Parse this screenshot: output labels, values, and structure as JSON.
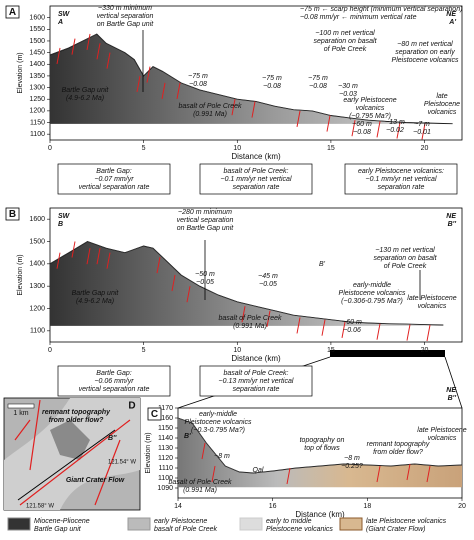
{
  "chart_data": [
    {
      "type": "line",
      "panel": "A",
      "left_label": [
        "SW",
        "A"
      ],
      "right_label": [
        "NE",
        "A'"
      ],
      "x_label": "Distance (km)",
      "y_label": "Elevation (m)",
      "color": "#6e6e6e",
      "x": [
        0,
        1,
        2,
        2.5,
        3,
        4,
        4.5,
        5,
        5.5,
        6,
        7,
        8,
        9,
        10,
        11,
        12,
        13,
        14,
        15,
        16,
        17,
        18,
        19,
        20,
        21,
        21.5
      ],
      "values": [
        1440,
        1470,
        1510,
        1530,
        1490,
        1450,
        1420,
        1350,
        1390,
        1370,
        1320,
        1290,
        1270,
        1250,
        1240,
        1220,
        1205,
        1200,
        1180,
        1170,
        1160,
        1155,
        1150,
        1148,
        1146,
        1145
      ],
      "xlim": [
        0,
        22
      ],
      "ylim": [
        1075,
        1650
      ],
      "xticks": [
        0,
        5,
        10,
        15,
        20
      ],
      "yticks": [
        1100,
        1150,
        1200,
        1250,
        1300,
        1350,
        1400,
        1450,
        1500,
        1550,
        1600
      ],
      "annotations": [
        [
          "~330 m minimum",
          "vertical separation",
          "on Bartle Gap unit"
        ],
        [
          "~75 m ← scarp height (minimum vertical separation)",
          "~0.08 mm/yr ← minimum vertical rate"
        ],
        [
          "~100 m net vertical",
          "separation on basalt",
          "of Pole Creek"
        ],
        [
          "~80 m net vertical",
          "separation on early",
          "Pleistocene volcanics"
        ],
        [
          "Bartle Gap unit",
          "(4.9-6.2 Ma)"
        ],
        [
          "basalt of Pole Creek",
          "(0.991 Ma)"
        ],
        [
          "early Pleistocene",
          "volcanics",
          "(~0.795 Ma?)"
        ],
        [
          "late",
          "Pleistocene",
          "volcanics"
        ],
        [
          "~75 m",
          "~0.08"
        ],
        [
          "~75 m",
          "~0.08"
        ],
        [
          "~75 m",
          "~0.08"
        ],
        [
          "~30 m",
          "~0.03"
        ],
        [
          "~60 m",
          "~0.08"
        ],
        [
          "~13 m",
          "~0.02"
        ],
        [
          "~7 m",
          "~0.01"
        ]
      ],
      "rate_boxes": [
        [
          "Bartle Gap:",
          "~0.07 mm/yr",
          "vertical separation rate"
        ],
        [
          "basalt of Pole Creek:",
          "~0.1 mm/yr net vertical",
          "separation rate"
        ],
        [
          "early Pleistocene volcanics:",
          "~0.1 mm/yr net vertical",
          "separation rate"
        ]
      ]
    },
    {
      "type": "line",
      "panel": "B",
      "left_label": [
        "SW",
        "B"
      ],
      "right_label": [
        "NE",
        "B''"
      ],
      "x_label": "Distance (km)",
      "y_label": "Elevation (m)",
      "color": "#6e6e6e",
      "x": [
        0,
        1,
        2,
        3,
        4,
        5,
        5.5,
        6,
        7,
        8,
        9,
        10,
        11,
        12,
        13,
        14,
        15,
        16,
        17,
        18,
        19,
        20,
        21
      ],
      "values": [
        1400,
        1450,
        1500,
        1470,
        1450,
        1480,
        1470,
        1430,
        1350,
        1300,
        1260,
        1230,
        1210,
        1190,
        1170,
        1160,
        1150,
        1140,
        1135,
        1132,
        1130,
        1128,
        1126
      ],
      "xlim": [
        0,
        22
      ],
      "ylim": [
        1050,
        1650
      ],
      "xticks": [
        0,
        5,
        10,
        15,
        20
      ],
      "yticks": [
        1100,
        1200,
        1300,
        1400,
        1500,
        1600
      ],
      "annotations": [
        [
          "~280 m minimum",
          "vertical separation",
          "on Bartle Gap unit"
        ],
        [
          "~130 m net vertical",
          "separation on basalt",
          "of Pole Creek"
        ],
        [
          "Bartle Gap unit",
          "(4.9-6.2 Ma)"
        ],
        [
          "basalt of Pole Creek",
          "(0.991 Ma)"
        ],
        [
          "early-middle",
          "Pleistocene volcanics",
          "(~0.306-0.795 Ma?)"
        ],
        [
          "late Pleistocene",
          "volcanics"
        ],
        [
          "~50 m",
          "~0.05"
        ],
        [
          "~45 m",
          "~0.05"
        ],
        [
          "~60 m",
          "~0.06"
        ],
        [
          "B'"
        ]
      ],
      "rate_boxes": [
        [
          "Bartle Gap:",
          "~0.06 mm/yr",
          "vertical separation rate"
        ],
        [
          "basalt of Pole Creek:",
          "~0.13 mm/yr net vertical",
          "separation rate"
        ]
      ]
    },
    {
      "type": "line",
      "panel": "C",
      "left_label": [
        "B'"
      ],
      "right_label": [
        "NE",
        "B''"
      ],
      "x_label": "Distance (km)",
      "y_label": "Elevation (m)",
      "color": "#8a8a8a",
      "x": [
        14,
        14.3,
        14.6,
        15,
        15.3,
        15.6,
        16,
        16.5,
        17,
        17.5,
        18,
        18.5,
        19,
        19.5,
        20
      ],
      "values": [
        1160,
        1155,
        1135,
        1112,
        1106,
        1105,
        1107,
        1110,
        1112,
        1114,
        1113,
        1112,
        1114,
        1112,
        1113
      ],
      "xlim": [
        14,
        20
      ],
      "ylim": [
        1080,
        1170
      ],
      "xticks": [
        14,
        16,
        18,
        20
      ],
      "yticks": [
        1090,
        1100,
        1110,
        1120,
        1130,
        1140,
        1150,
        1160,
        1170
      ],
      "annotations": [
        [
          "early-middle",
          "Pleistocene volcanics",
          "(~0.3-0.795 Ma?)"
        ],
        [
          "~8 m"
        ],
        [
          "basalt of Pole Creek",
          "(0.991 Ma)"
        ],
        [
          "Qal"
        ],
        [
          "topography on",
          "top of flows"
        ],
        [
          "~8 m",
          "~0.25?"
        ],
        [
          "remnant topography",
          "from older flow?"
        ],
        [
          "late Pleistocene",
          "volcanics"
        ]
      ],
      "rate_boxes": []
    }
  ],
  "map": {
    "panel": "D",
    "scale": "1 km",
    "labels": [
      "remnant topography",
      "from older flow?"
    ],
    "point": "B''",
    "flow": "Giant Crater Flow",
    "lon1": "121.54° W",
    "lon2": "121.58° W"
  },
  "legend": [
    [
      "Miocene-Pliocene",
      "Bartle Gap unit"
    ],
    [
      "early Pleistocene",
      "basalt of Pole Creek"
    ],
    [
      "early to middle",
      "Pleistocene volcanics"
    ],
    [
      "late Pleistocene volcanics",
      "(Giant Crater Flow)"
    ]
  ]
}
